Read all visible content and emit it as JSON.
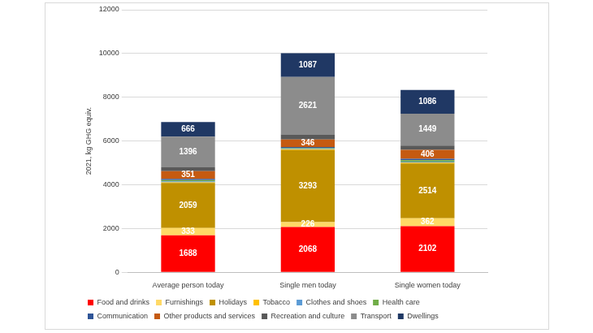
{
  "chart_data": {
    "type": "bar",
    "stacked": true,
    "grid": true,
    "legend": "bottom",
    "y_label": "2021, kg GHG equiv.",
    "categories": [
      "Average person today",
      "Single men today",
      "Single women today"
    ],
    "ylim": [
      0,
      12000
    ],
    "yticks": [
      0,
      2000,
      4000,
      6000,
      8000,
      10000,
      12000
    ],
    "series": [
      {
        "name": "Food and drinks",
        "color": "#ff0000",
        "values": [
          1688,
          2068,
          2102
        ],
        "data_labels": true
      },
      {
        "name": "Furnishings",
        "color": "#ffd966",
        "values": [
          333,
          226,
          362
        ],
        "data_labels": true
      },
      {
        "name": "Holidays",
        "color": "#bf9000",
        "values": [
          2059,
          3293,
          2514
        ],
        "data_labels": true
      },
      {
        "name": "Tobacco",
        "color": "#ffc000",
        "values": [
          30,
          40,
          30
        ],
        "data_labels": false
      },
      {
        "name": "Clothes and shoes",
        "color": "#5b9bd5",
        "values": [
          50,
          30,
          50
        ],
        "data_labels": false
      },
      {
        "name": "Health care",
        "color": "#70ad47",
        "values": [
          50,
          30,
          60
        ],
        "data_labels": false
      },
      {
        "name": "Communication",
        "color": "#2f5597",
        "values": [
          60,
          40,
          70
        ],
        "data_labels": false
      },
      {
        "name": "Other products and services",
        "color": "#c55a11",
        "values": [
          351,
          346,
          406
        ],
        "data_labels": true
      },
      {
        "name": "Recreation and culture",
        "color": "#595959",
        "values": [
          180,
          230,
          200
        ],
        "data_labels": false
      },
      {
        "name": "Transport",
        "color": "#8c8c8c",
        "values": [
          1396,
          2621,
          1449
        ],
        "data_labels": true
      },
      {
        "name": "Dwellings",
        "color": "#203864",
        "values": [
          666,
          1087,
          1086
        ],
        "data_labels": true
      }
    ]
  }
}
